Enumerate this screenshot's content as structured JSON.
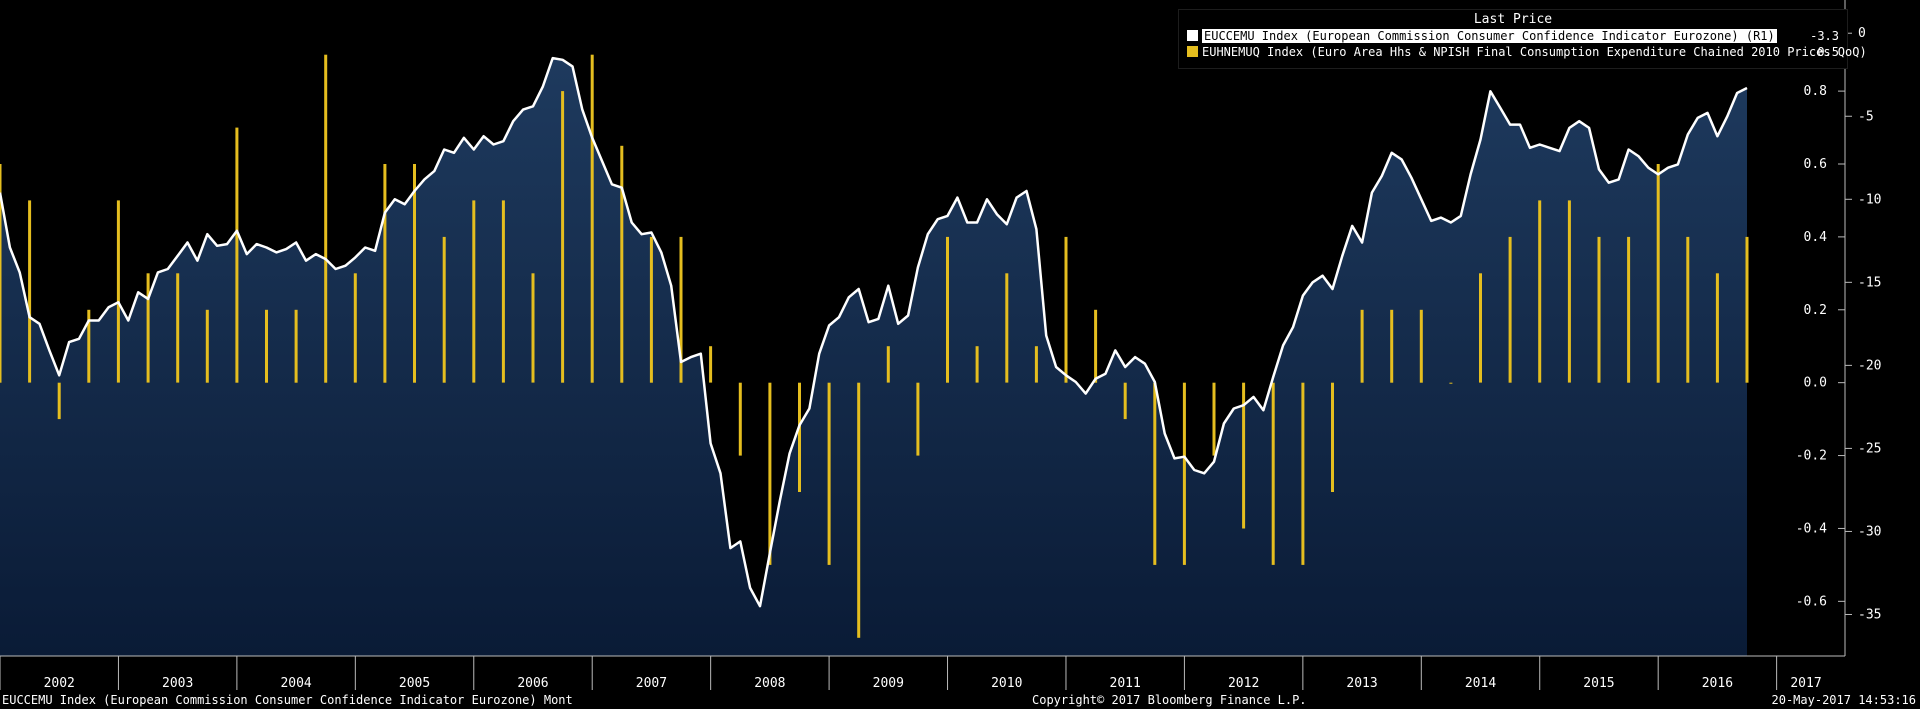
{
  "legend": {
    "title": "Last Price",
    "items": [
      {
        "label": "EUCCEMU Index (European Commission Consumer Confidence Indicator Eurozone)  (R1)",
        "value": "-3.3",
        "color": "#ffffff"
      },
      {
        "label": "EUHNEMUQ Index (Euro Area Hhs & NPISH Final Consumption Expenditure Chained 2010 Prices QoQ)",
        "value": "0.5",
        "color": "#e5be1f"
      }
    ]
  },
  "footer": {
    "left": "EUCCEMU Index (European Commission Consumer Confidence Indicator Eurozone)  Mont",
    "center": "Copyright© 2017 Bloomberg Finance L.P.",
    "right": "20-May-2017 14:53:16"
  },
  "chart_data": {
    "type": "line+bar",
    "x_ticks": [
      "2002",
      "2003",
      "2004",
      "2005",
      "2006",
      "2007",
      "2008",
      "2009",
      "2010",
      "2011",
      "2012",
      "2013",
      "2014",
      "2015",
      "2016",
      "2017"
    ],
    "x_range": [
      2002.0,
      2017.4
    ],
    "axes": {
      "outer": {
        "label": "EUCCEMU",
        "ticks": [
          0,
          -5,
          -10,
          -15,
          -20,
          -25,
          -30,
          -35
        ],
        "range": [
          -37.5,
          2
        ]
      },
      "inner": {
        "label": "EUHNEMUQ",
        "ticks": [
          0.8,
          0.6,
          0.4,
          0.2,
          0.0,
          -0.2,
          -0.4,
          -0.6
        ],
        "range": [
          -0.75,
          1.05
        ]
      }
    },
    "series": [
      {
        "name": "EUCCEMU Index",
        "kind": "area-line",
        "axis": "outer",
        "start": 2002.0,
        "step_months": 1,
        "values": [
          -9.6,
          -12.9,
          -14.4,
          -17.1,
          -17.5,
          -19.1,
          -20.6,
          -18.6,
          -18.4,
          -17.3,
          -17.3,
          -16.5,
          -16.2,
          -17.3,
          -15.6,
          -16.0,
          -14.4,
          -14.2,
          -13.4,
          -12.6,
          -13.7,
          -12.1,
          -12.8,
          -12.7,
          -11.9,
          -13.3,
          -12.7,
          -12.9,
          -13.2,
          -13.0,
          -12.6,
          -13.7,
          -13.3,
          -13.6,
          -14.2,
          -14.0,
          -13.5,
          -12.9,
          -13.1,
          -10.8,
          -10.0,
          -10.3,
          -9.5,
          -8.8,
          -8.3,
          -7.0,
          -7.2,
          -6.3,
          -7.0,
          -6.2,
          -6.7,
          -6.5,
          -5.3,
          -4.6,
          -4.4,
          -3.2,
          -1.5,
          -1.6,
          -2.0,
          -4.6,
          -6.3,
          -7.7,
          -9.1,
          -9.3,
          -11.4,
          -12.1,
          -12.0,
          -13.2,
          -15.2,
          -19.8,
          -19.5,
          -19.3,
          -24.7,
          -26.5,
          -31.0,
          -30.6,
          -33.4,
          -34.5,
          -31.3,
          -28.2,
          -25.3,
          -23.6,
          -22.6,
          -19.3,
          -17.6,
          -17.1,
          -15.9,
          -15.4,
          -17.4,
          -17.2,
          -15.2,
          -17.5,
          -17.0,
          -14.1,
          -12.1,
          -11.2,
          -11.0,
          -9.9,
          -11.4,
          -11.4,
          -10.0,
          -10.9,
          -11.5,
          -9.9,
          -9.5,
          -11.8,
          -18.2,
          -20.1,
          -20.6,
          -21.0,
          -21.7,
          -20.8,
          -20.5,
          -19.1,
          -20.1,
          -19.5,
          -19.9,
          -21.0,
          -24.1,
          -25.6,
          -25.5,
          -26.3,
          -26.5,
          -25.8,
          -23.5,
          -22.6,
          -22.4,
          -21.9,
          -22.7,
          -20.7,
          -18.8,
          -17.7,
          -15.8,
          -15.0,
          -14.6,
          -15.4,
          -13.4,
          -11.6,
          -12.6,
          -9.6,
          -8.6,
          -7.2,
          -7.6,
          -8.7,
          -10.0,
          -11.3,
          -11.1,
          -11.4,
          -11.0,
          -8.5,
          -6.4,
          -3.5,
          -4.5,
          -5.5,
          -5.5,
          -6.9,
          -6.7,
          -6.9,
          -7.1,
          -5.7,
          -5.3,
          -5.7,
          -8.2,
          -9.0,
          -8.8,
          -7.0,
          -7.4,
          -8.1,
          -8.5,
          -8.1,
          -7.9,
          -6.1,
          -5.1,
          -4.8,
          -6.2,
          -5.0,
          -3.6,
          -3.3
        ]
      },
      {
        "name": "EUHNEMUQ Index",
        "kind": "bar",
        "axis": "inner",
        "start": 2002.0,
        "step_months": 3,
        "values": [
          0.6,
          0.5,
          -0.1,
          0.2,
          0.5,
          0.3,
          0.3,
          0.2,
          0.7,
          0.2,
          0.2,
          0.9,
          0.3,
          0.6,
          0.6,
          0.4,
          0.5,
          0.5,
          0.3,
          0.8,
          0.9,
          0.65,
          0.4,
          0.4,
          0.1,
          -0.2,
          -0.5,
          -0.3,
          -0.5,
          -0.7,
          0.1,
          -0.2,
          0.4,
          0.1,
          0.3,
          0.1,
          0.4,
          0.2,
          -0.1,
          -0.5,
          -0.5,
          -0.2,
          -0.4,
          -0.5,
          -0.5,
          -0.3,
          0.2,
          0.2,
          0.2,
          0.0,
          0.3,
          0.4,
          0.5,
          0.5,
          0.4,
          0.4,
          0.6,
          0.4,
          0.3,
          0.4
        ]
      }
    ]
  }
}
